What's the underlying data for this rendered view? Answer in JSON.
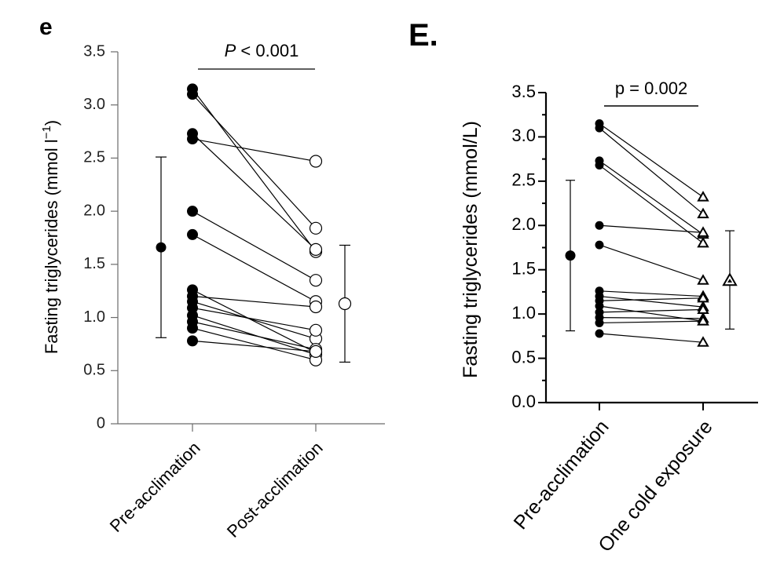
{
  "chart_data": [
    {
      "panel": "e",
      "type": "scatter",
      "ylabel": "Fasting triglycerides (mmol l",
      "ylabel_sup": "−1",
      "ylabel_end": ")",
      "ylim": [
        0,
        3.5
      ],
      "yticks": [
        0,
        0.5,
        1.0,
        1.5,
        2.0,
        2.5,
        3.0,
        3.5
      ],
      "ytick_labels": [
        "0",
        "0.5",
        "1.0",
        "1.5",
        "2.0",
        "2.5",
        "3.0",
        "3.5"
      ],
      "categories": [
        "Pre-acclimation",
        "Post-acclimation"
      ],
      "annotation": {
        "italic": "P",
        "rest": " < 0.001"
      },
      "pairs": [
        [
          3.15,
          1.62
        ],
        [
          3.1,
          1.84
        ],
        [
          2.73,
          1.64
        ],
        [
          2.68,
          2.47
        ],
        [
          2.0,
          1.35
        ],
        [
          1.78,
          1.15
        ],
        [
          1.26,
          0.67
        ],
        [
          1.2,
          1.1
        ],
        [
          1.15,
          0.8
        ],
        [
          1.09,
          0.88
        ],
        [
          1.02,
          0.65
        ],
        [
          0.96,
          0.7
        ],
        [
          0.9,
          0.6
        ],
        [
          0.78,
          0.68
        ]
      ],
      "summary": [
        {
          "group": "Pre-acclimation",
          "mean": 1.66,
          "low": 0.81,
          "high": 2.51
        },
        {
          "group": "Post-acclimation",
          "mean": 1.13,
          "low": 0.58,
          "high": 1.68
        }
      ]
    },
    {
      "panel": "E.",
      "type": "scatter",
      "ylabel": "Fasting triglycerides (mmol/L)",
      "ylim": [
        0,
        3.5
      ],
      "yticks": [
        0,
        0.5,
        1.0,
        1.5,
        2.0,
        2.5,
        3.0,
        3.5
      ],
      "ytick_labels": [
        "0.0",
        "0.5",
        "1.0",
        "1.5",
        "2.0",
        "2.5",
        "3.0",
        "3.5"
      ],
      "categories": [
        "Pre-acclimation",
        "One cold exposure"
      ],
      "annotation": {
        "italic": "",
        "rest": "p = 0.002"
      },
      "pairs": [
        [
          3.15,
          2.32
        ],
        [
          3.1,
          2.13
        ],
        [
          2.73,
          1.9
        ],
        [
          2.68,
          1.8
        ],
        [
          2.0,
          1.92
        ],
        [
          1.78,
          1.38
        ],
        [
          1.26,
          1.2
        ],
        [
          1.2,
          1.08
        ],
        [
          1.15,
          1.18
        ],
        [
          1.09,
          0.92
        ],
        [
          1.02,
          1.05
        ],
        [
          0.96,
          0.95
        ],
        [
          0.9,
          0.92
        ],
        [
          0.78,
          0.68
        ]
      ],
      "summary": [
        {
          "group": "Pre-acclimation",
          "mean": 1.66,
          "low": 0.81,
          "high": 2.51
        },
        {
          "group": "One cold exposure",
          "mean": 1.38,
          "low": 0.83,
          "high": 1.94
        }
      ]
    }
  ]
}
